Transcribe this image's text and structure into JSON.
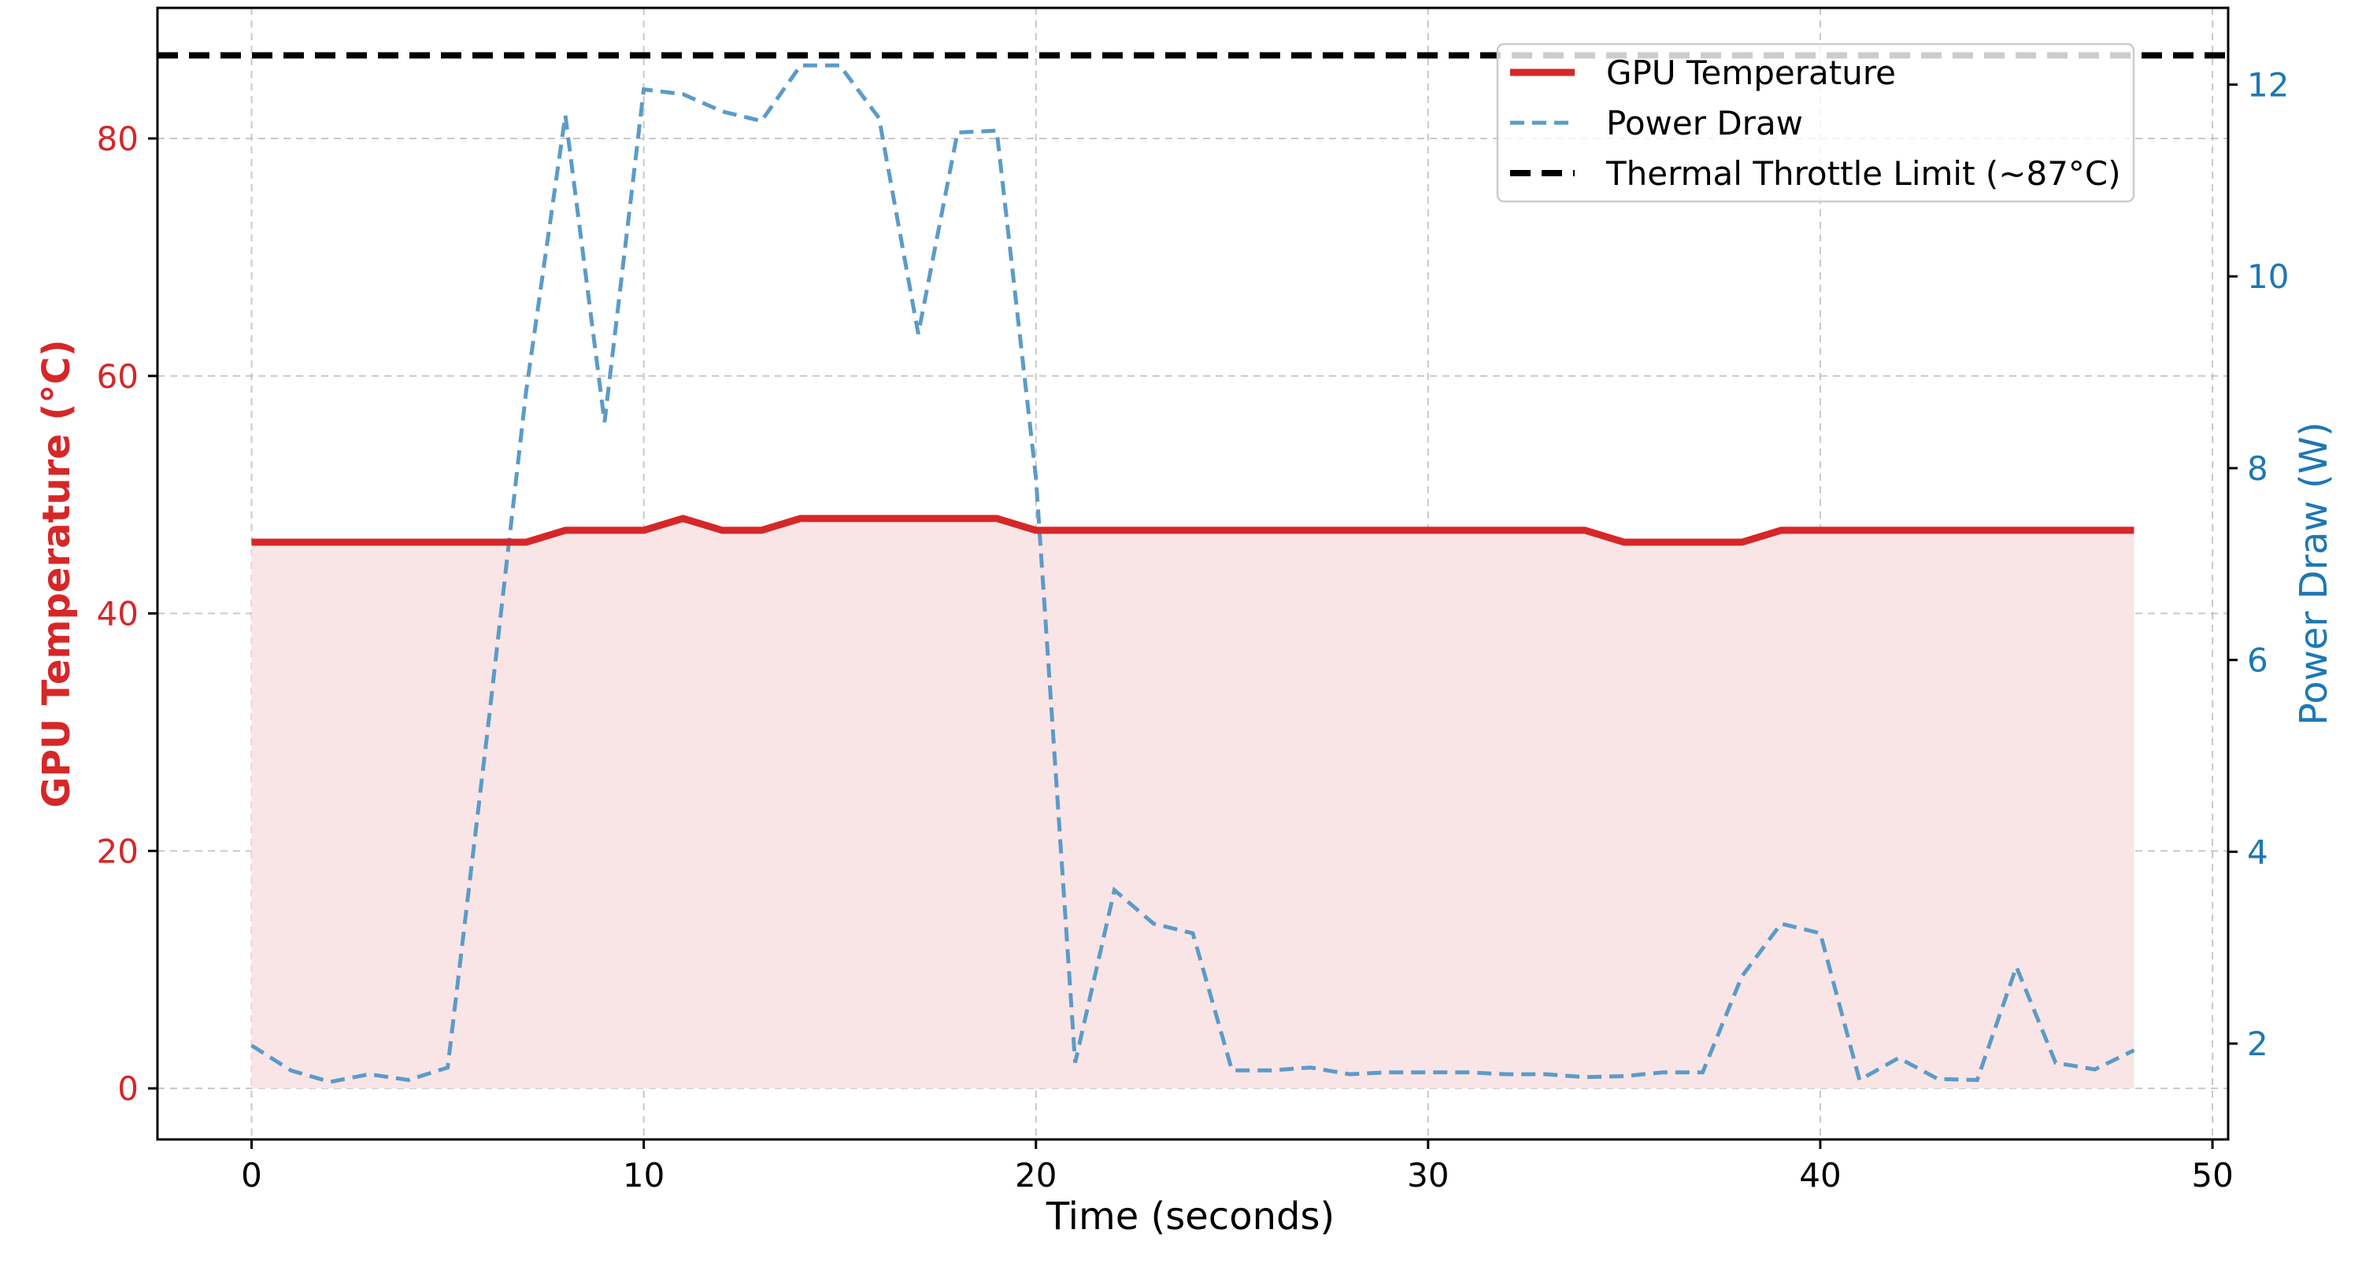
{
  "chart_data": {
    "type": "line",
    "title": "",
    "xlabel": "Time (seconds)",
    "ylabel_left": "GPU Temperature (°C)",
    "ylabel_right": "Power Draw (W)",
    "xlim": [
      -2.4,
      50.4
    ],
    "ylim_left": [
      -4.3,
      91.0
    ],
    "ylim_right": [
      1.0,
      12.8
    ],
    "xticks": [
      0,
      10,
      20,
      30,
      40,
      50
    ],
    "yticks_left": [
      0,
      20,
      40,
      60,
      80
    ],
    "yticks_right": [
      2,
      4,
      6,
      8,
      10,
      12
    ],
    "grid": true,
    "legend_position": "upper right",
    "colors": {
      "temperature": "#d62728",
      "power": "#5b9bc8",
      "throttle": "#000000",
      "axis_left": "#d62728",
      "axis_right": "#1f77b4",
      "fill": "#f9e5e6"
    },
    "x": [
      0,
      1,
      2,
      3,
      4,
      5,
      6,
      7,
      8,
      9,
      10,
      11,
      12,
      13,
      14,
      15,
      16,
      17,
      18,
      19,
      20,
      21,
      22,
      23,
      24,
      25,
      26,
      27,
      28,
      29,
      30,
      31,
      32,
      33,
      34,
      35,
      36,
      37,
      38,
      39,
      40,
      41,
      42,
      43,
      44,
      45,
      46,
      47,
      48
    ],
    "series": [
      {
        "name": "GPU Temperature",
        "axis": "left",
        "style": "solid",
        "fill_to_zero": true,
        "values": [
          46,
          46,
          46,
          46,
          46,
          46,
          46,
          46,
          47,
          47,
          47,
          48,
          47,
          47,
          48,
          48,
          48,
          48,
          48,
          48,
          47,
          47,
          47,
          47,
          47,
          47,
          47,
          47,
          47,
          47,
          47,
          47,
          47,
          47,
          47,
          46,
          46,
          46,
          46,
          47,
          47,
          47,
          47,
          47,
          47,
          47,
          47,
          47,
          47
        ]
      },
      {
        "name": "Power Draw",
        "axis": "right",
        "style": "dashed",
        "values": [
          1.98,
          1.72,
          1.6,
          1.68,
          1.62,
          1.75,
          5.2,
          8.8,
          11.68,
          8.48,
          11.95,
          11.9,
          11.72,
          11.62,
          12.2,
          12.2,
          11.65,
          9.4,
          11.5,
          11.52,
          7.9,
          1.8,
          3.6,
          3.25,
          3.15,
          1.72,
          1.72,
          1.75,
          1.68,
          1.7,
          1.7,
          1.7,
          1.68,
          1.68,
          1.65,
          1.66,
          1.7,
          1.7,
          2.7,
          3.25,
          3.15,
          1.62,
          1.85,
          1.63,
          1.62,
          2.8,
          1.8,
          1.73,
          1.93
        ]
      }
    ],
    "reference_lines": [
      {
        "name": "Thermal Throttle Limit (~87°C)",
        "axis": "left",
        "value": 87,
        "style": "dashed"
      }
    ],
    "legend": [
      "GPU Temperature",
      "Power Draw",
      "Thermal Throttle Limit (~87°C)"
    ]
  }
}
